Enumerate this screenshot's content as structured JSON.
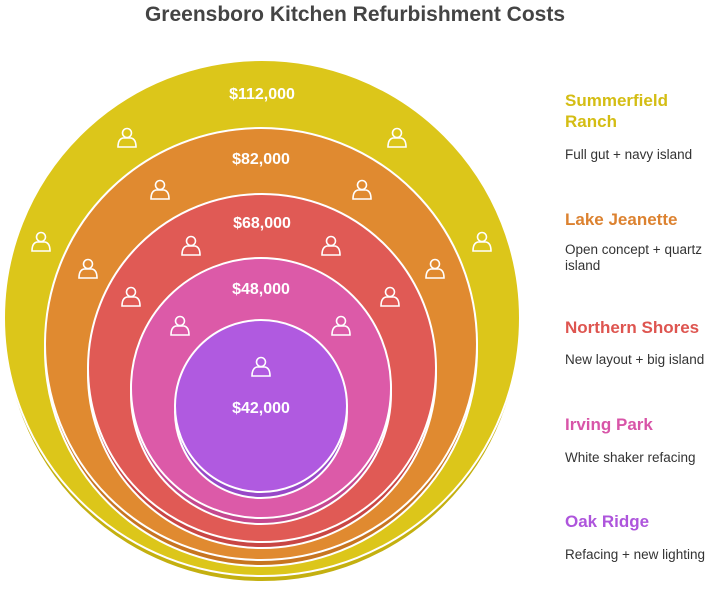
{
  "title": "Greensboro Kitchen Refurbishment Costs",
  "items": [
    {
      "name": "Summerfield Ranch",
      "description": "Full gut + navy island",
      "cost": "$112,000"
    },
    {
      "name": "Lake Jeanette",
      "description": "Open concept + quartz island",
      "cost": "$82,000"
    },
    {
      "name": "Northern Shores",
      "description": "New layout + big island",
      "cost": "$68,000"
    },
    {
      "name": "Irving Park",
      "description": "White shaker refacing",
      "cost": "$48,000"
    },
    {
      "name": "Oak Ridge",
      "description": "Refacing + new lighting",
      "cost": "$42,000"
    }
  ]
}
